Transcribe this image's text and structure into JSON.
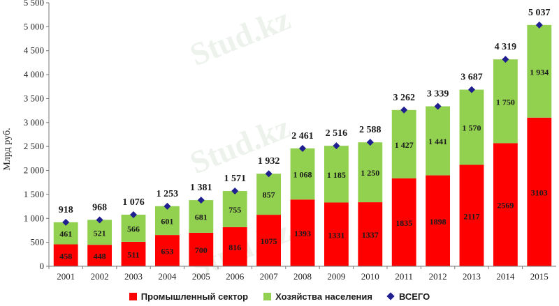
{
  "chart_data": {
    "type": "bar",
    "stacked": true,
    "ylabel": "Млрд руб.",
    "ylim": [
      0,
      5500
    ],
    "yticks": [
      "0",
      "500",
      "1 000",
      "1 500",
      "2 000",
      "2 500",
      "3 000",
      "3 500",
      "4 000",
      "4 500",
      "5 000",
      "5 500"
    ],
    "categories": [
      "2001",
      "2002",
      "2003",
      "2004",
      "2005",
      "2006",
      "2007",
      "2008",
      "2009",
      "2010",
      "2011",
      "2012",
      "2013",
      "2014",
      "2015"
    ],
    "series": [
      {
        "name": "Промышленный сектор",
        "color": "#ff0000",
        "values": [
          458,
          448,
          511,
          653,
          700,
          816,
          1075,
          1393,
          1331,
          1337,
          1835,
          1898,
          2117,
          2569,
          3103
        ],
        "labels": [
          "458",
          "448",
          "511",
          "653",
          "700",
          "816",
          "1075",
          "1393",
          "1331",
          "1337",
          "1835",
          "1898",
          "2117",
          "2569",
          "3103"
        ]
      },
      {
        "name": "Хозяйства населения",
        "color": "#92d050",
        "values": [
          461,
          521,
          566,
          601,
          681,
          755,
          857,
          1068,
          1185,
          1250,
          1427,
          1441,
          1570,
          1750,
          1934
        ],
        "labels": [
          "461",
          "521",
          "566",
          "601",
          "681",
          "755",
          "857",
          "1 068",
          "1 185",
          "1 250",
          "1 427",
          "1 441",
          "1 570",
          "1 750",
          "1 934"
        ]
      },
      {
        "name": "ВСЕГО",
        "type": "marker",
        "color": "#1f1f8f",
        "values": [
          918,
          968,
          1076,
          1253,
          1381,
          1571,
          1932,
          2461,
          2516,
          2588,
          3262,
          3339,
          3687,
          4319,
          5037
        ],
        "labels": [
          "918",
          "968",
          "1 076",
          "1 253",
          "1 381",
          "1 571",
          "1 932",
          "2 461",
          "2 516",
          "2 588",
          "3 262",
          "3 339",
          "3 687",
          "4 319",
          "5 037"
        ]
      }
    ],
    "grid": false,
    "legend_position": "bottom"
  },
  "legend": {
    "industry": "Промышленный сектор",
    "households": "Хозяйства населения",
    "total": "ВСЕГО"
  },
  "watermark": "Stud.kz"
}
